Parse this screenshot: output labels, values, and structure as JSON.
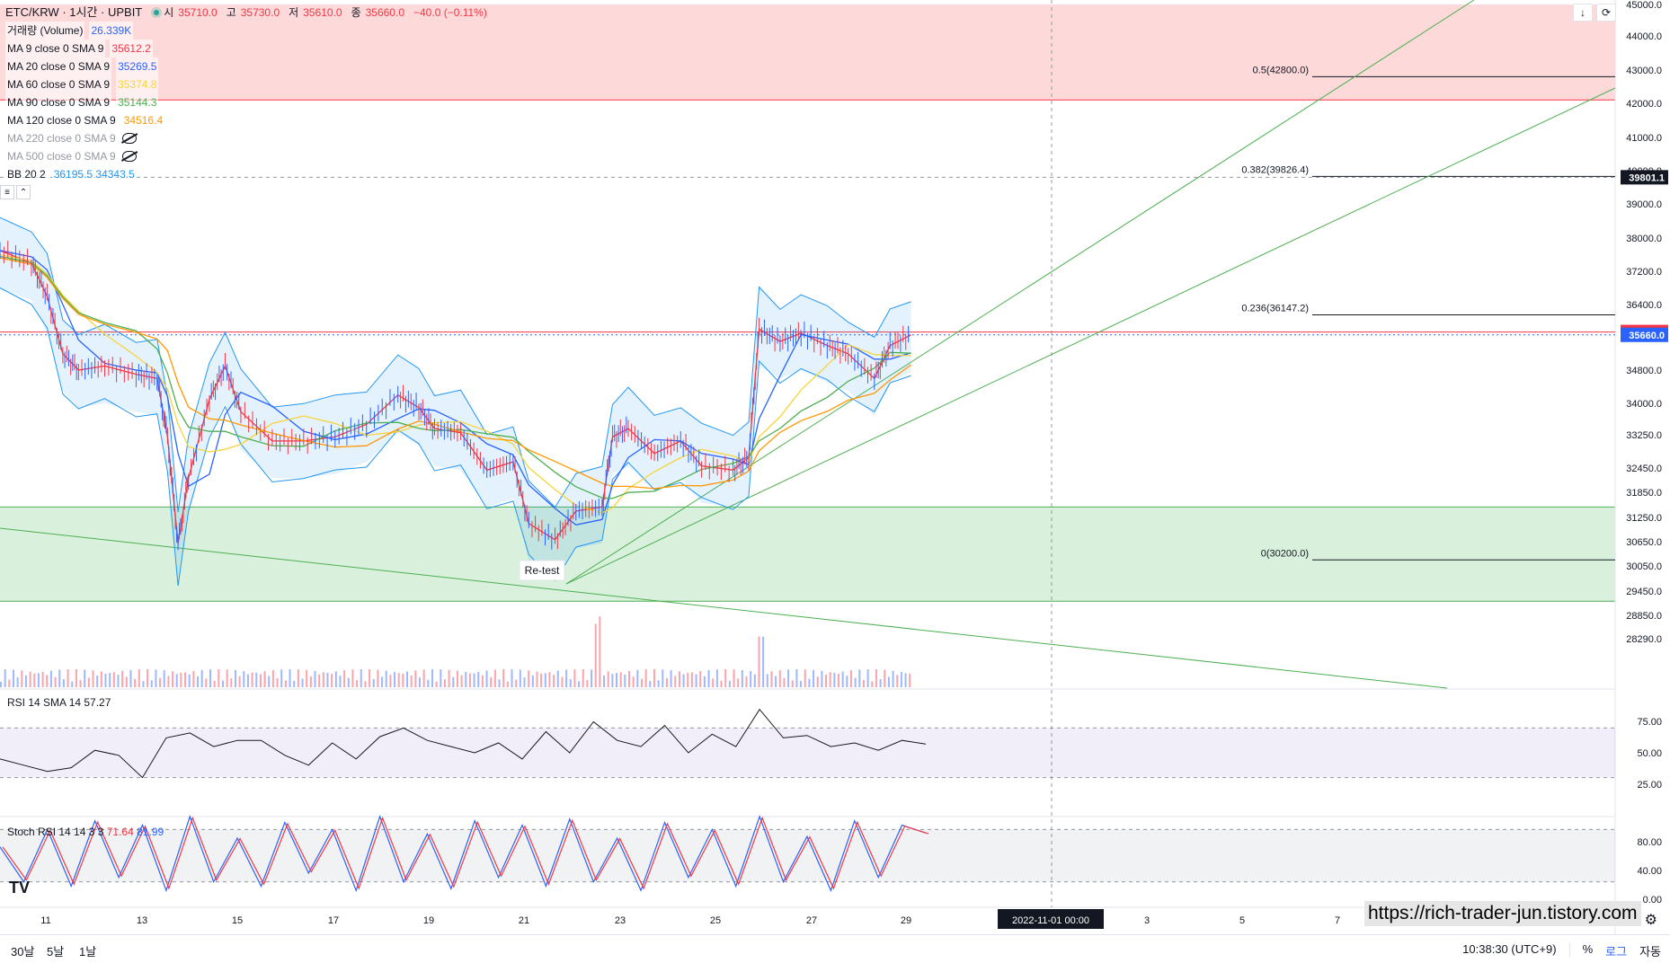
{
  "header": {
    "symbol": "ETC/KRW · 1시간 · UPBIT",
    "ohlc": [
      {
        "label": "시",
        "value": "35710.0"
      },
      {
        "label": "고",
        "value": "35730.0"
      },
      {
        "label": "저",
        "value": "35610.0"
      },
      {
        "label": "종",
        "value": "35660.0"
      }
    ],
    "change": "−40.0 (−0.11%)"
  },
  "legend": [
    {
      "label": "거래량 (Volume)",
      "value": "26.339K",
      "color": "#2962ff"
    },
    {
      "label": "MA 9 close 0 SMA 9",
      "value": "35612.2",
      "color": "#f23645"
    },
    {
      "label": "MA 20 close 0 SMA 9",
      "value": "35269.5",
      "color": "#2962ff"
    },
    {
      "label": "MA 60 close 0 SMA 9",
      "value": "35374.8",
      "color": "#f7d43b"
    },
    {
      "label": "MA 90 close 0 SMA 9",
      "value": "35144.3",
      "color": "#4caf50"
    },
    {
      "label": "MA 120 close 0 SMA 9",
      "value": "34516.4",
      "color": "#ff9800"
    },
    {
      "label": "MA 220 close 0 SMA 9",
      "value": "",
      "color": "#9598a1",
      "hidden": true
    },
    {
      "label": "MA 500 close 0 SMA 9",
      "value": "",
      "color": "#9598a1",
      "hidden": true
    },
    {
      "label": "BB 20 2",
      "value": "36195.5  34343.5",
      "color": "#2196f3"
    }
  ],
  "price_axis": {
    "ticks": [
      "45000.0",
      "44000.0",
      "43000.0",
      "42000.0",
      "41000.0",
      "40000.0",
      "39000.0",
      "38000.0",
      "37200.0",
      "36400.0",
      "34800.0",
      "34000.0",
      "33250.0",
      "32450.0",
      "31850.0",
      "31250.0",
      "30650.0",
      "30050.0",
      "29450.0",
      "28850.0",
      "28290.0"
    ],
    "tick_values": [
      45000,
      44000,
      43000,
      42000,
      41000,
      40000,
      39000,
      38000,
      37200,
      36400,
      34800,
      34000,
      33250,
      32450,
      31850,
      31250,
      30650,
      30050,
      29450,
      28850,
      28290
    ],
    "labels": [
      {
        "text": "39801.1",
        "value": 39801.1,
        "bg": "#131722",
        "fg": "#ffffff"
      },
      {
        "text": "35730.0",
        "value": 35730,
        "bg": "#f23645",
        "fg": "#ffffff"
      },
      {
        "text": "35660.0",
        "value": 35660,
        "bg": "#2962ff",
        "fg": "#ffffff"
      }
    ]
  },
  "fib_levels": [
    {
      "label": "0.5(42800.0)",
      "value": 42800
    },
    {
      "label": "0.382(39826.4)",
      "value": 39826.4
    },
    {
      "label": "0.236(36147.2)",
      "value": 36147.2
    },
    {
      "label": "0(30200.0)",
      "value": 30200
    }
  ],
  "zones": [
    {
      "name": "resistance",
      "top": 45000,
      "bottom": 42100,
      "color": "#fdd9d9"
    },
    {
      "name": "support",
      "top": 31500,
      "bottom": 29200,
      "color": "#d9f0dd"
    }
  ],
  "annotation": {
    "text": "Re-test"
  },
  "rsi": {
    "label": "RSI 14 SMA 14",
    "value": "57.27",
    "ticks": [
      "75.00",
      "50.00",
      "25.00"
    ]
  },
  "stoch": {
    "label": "Stoch RSI 14 14 3 3",
    "k": "71.64",
    "d": "81.99",
    "ticks": [
      "80.00",
      "40.00",
      "0.00"
    ]
  },
  "time_axis": {
    "ticks": [
      "11",
      "13",
      "15",
      "17",
      "19",
      "21",
      "23",
      "25",
      "27",
      "29",
      "3",
      "5",
      "7"
    ],
    "crosshair_label": "2022-11-01   00:00"
  },
  "bottom": {
    "ranges": [
      "30날",
      "5날",
      "1날"
    ],
    "clock": "10:38:30 (UTC+9)",
    "pct": "%",
    "log": "로그",
    "auto": "자동"
  },
  "watermark": "https://rich-trader-jun.tistory.com",
  "chart_data": {
    "type": "line",
    "title": "ETC/KRW · 1시간 · UPBIT",
    "ylim": [
      28290,
      45000
    ],
    "price_path": [
      {
        "t": 0,
        "p": 37700
      },
      {
        "t": 30,
        "p": 37400
      },
      {
        "t": 45,
        "p": 36600
      },
      {
        "t": 60,
        "p": 35200
      },
      {
        "t": 75,
        "p": 34800
      },
      {
        "t": 100,
        "p": 34900
      },
      {
        "t": 130,
        "p": 34700
      },
      {
        "t": 150,
        "p": 34600
      },
      {
        "t": 160,
        "p": 33200
      },
      {
        "t": 170,
        "p": 30600
      },
      {
        "t": 180,
        "p": 32200
      },
      {
        "t": 200,
        "p": 34100
      },
      {
        "t": 215,
        "p": 34900
      },
      {
        "t": 230,
        "p": 33800
      },
      {
        "t": 260,
        "p": 33100
      },
      {
        "t": 290,
        "p": 33100
      },
      {
        "t": 320,
        "p": 33200
      },
      {
        "t": 350,
        "p": 33500
      },
      {
        "t": 380,
        "p": 34200
      },
      {
        "t": 400,
        "p": 33900
      },
      {
        "t": 415,
        "p": 33400
      },
      {
        "t": 440,
        "p": 33300
      },
      {
        "t": 465,
        "p": 32400
      },
      {
        "t": 490,
        "p": 32600
      },
      {
        "t": 505,
        "p": 31100
      },
      {
        "t": 530,
        "p": 30700
      },
      {
        "t": 550,
        "p": 31400
      },
      {
        "t": 575,
        "p": 31500
      },
      {
        "t": 585,
        "p": 33200
      },
      {
        "t": 600,
        "p": 33400
      },
      {
        "t": 625,
        "p": 32800
      },
      {
        "t": 650,
        "p": 33100
      },
      {
        "t": 670,
        "p": 32500
      },
      {
        "t": 700,
        "p": 32400
      },
      {
        "t": 715,
        "p": 32700
      },
      {
        "t": 725,
        "p": 35800
      },
      {
        "t": 745,
        "p": 35500
      },
      {
        "t": 765,
        "p": 35700
      },
      {
        "t": 790,
        "p": 35400
      },
      {
        "t": 810,
        "p": 35200
      },
      {
        "t": 835,
        "p": 34600
      },
      {
        "t": 850,
        "p": 35400
      },
      {
        "t": 870,
        "p": 35660
      }
    ],
    "ma_series": [
      {
        "name": "MA 9",
        "color": "#f23645"
      },
      {
        "name": "MA 20",
        "color": "#2962ff"
      },
      {
        "name": "MA 60",
        "color": "#f7d43b"
      },
      {
        "name": "MA 90",
        "color": "#4caf50"
      },
      {
        "name": "MA 120",
        "color": "#ff9800"
      }
    ],
    "rsi_values": [
      45,
      40,
      35,
      38,
      52,
      48,
      30,
      62,
      66,
      55,
      60,
      60,
      48,
      40,
      58,
      45,
      63,
      70,
      60,
      55,
      50,
      58,
      45,
      67,
      50,
      75,
      60,
      55,
      72,
      50,
      65,
      55,
      85,
      62,
      64,
      55,
      58,
      52,
      60,
      57
    ],
    "stoch_values": [
      60,
      20,
      80,
      15,
      90,
      25,
      85,
      10,
      95,
      20,
      70,
      15,
      88,
      30,
      80,
      10,
      95,
      20,
      75,
      12,
      90,
      25,
      85,
      15,
      92,
      20,
      70,
      10,
      88,
      25,
      80,
      15,
      95,
      20,
      72,
      10,
      90,
      25,
      85,
      76
    ]
  }
}
